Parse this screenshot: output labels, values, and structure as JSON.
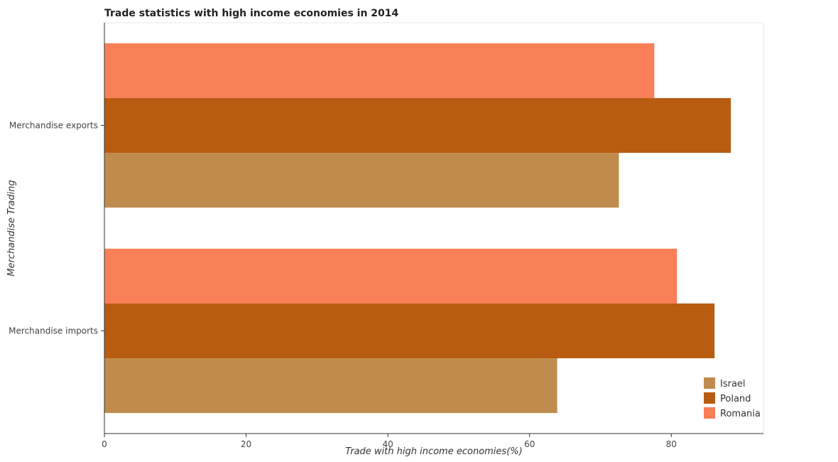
{
  "chart_data": {
    "type": "bar",
    "orientation": "horizontal",
    "title": "Trade statistics with high income economies in 2014",
    "xlabel": "Trade with high income economies(%)",
    "ylabel": "Merchandise Trading",
    "categories": [
      "Merchandise exports",
      "Merchandise imports"
    ],
    "xlim": [
      0,
      93
    ],
    "xticks": [
      0,
      20,
      40,
      60,
      80
    ],
    "xtick_labels": [
      "0",
      "20",
      "40",
      "60",
      "80"
    ],
    "grid": false,
    "legend_position": "bottom-right",
    "series": [
      {
        "name": "Israel",
        "color": "#bf8c4e",
        "values": [
          72.6,
          63.9
        ]
      },
      {
        "name": "Poland",
        "color": "#b85c12",
        "values": [
          88.4,
          86.1
        ]
      },
      {
        "name": "Romania",
        "color": "#f87f57",
        "values": [
          77.6,
          80.8
        ]
      }
    ]
  }
}
